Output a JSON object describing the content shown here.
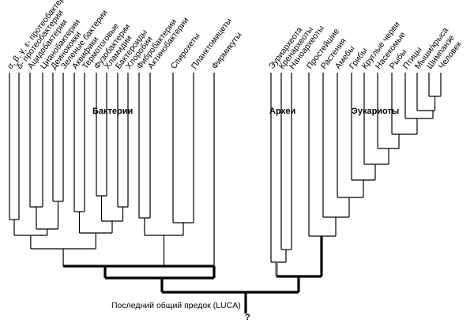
{
  "title": "",
  "groups": {
    "bacteria": "Бактерии",
    "archaea": "Археи",
    "eukaryotes": "Эукариоты"
  },
  "root_label": "Последний общий предок (LUCA)",
  "root_question": "?",
  "leaves": {
    "bacteria": [
      "α, β, γ, ε- протеобактерии",
      "δ- протеобактерии",
      "Ацидобактерии",
      "Цианобактерии",
      "Деинококки",
      "Зеленые бактерии",
      "Аквифики",
      "Термотоговые",
      "Фузобактерии",
      "Хламидии",
      "Бактероиды",
      "Хлоробии",
      "Фибробактерии",
      "Актинобактерии",
      "Спирохеты",
      "Планктомицеты",
      "Фирмикуты"
    ],
    "archaea": [
      "Эуриархеота",
      "Кренархеоты",
      "Наноархеоты"
    ],
    "eukaryotes": [
      "Простейшие",
      "Растения",
      "Амебы",
      "Грибы",
      "Круглые черви",
      "Насекомые",
      "Рыбы",
      "Птицы",
      "Мыши/крыса",
      "Шимпанзе",
      "Человек"
    ]
  },
  "colors": {
    "line": "#000000",
    "archaea_stem": "#666666"
  }
}
